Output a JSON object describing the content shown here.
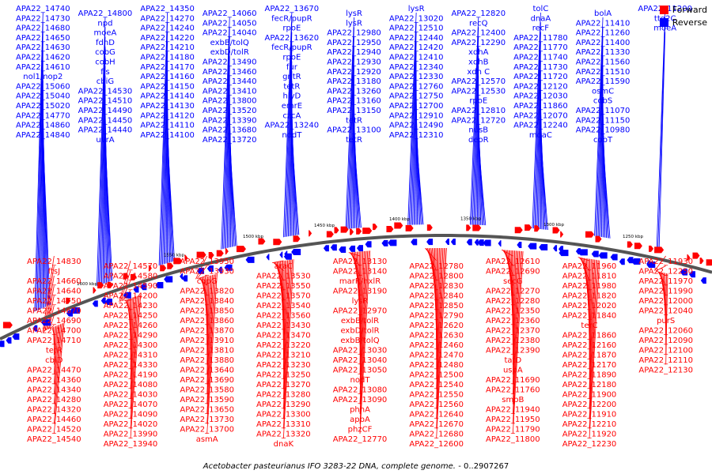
{
  "legend": {
    "forward_label": "Forward",
    "reverse_label": "Reverse",
    "forward_color": "#ff0000",
    "reverse_color": "#0000ff"
  },
  "caption": {
    "organism": "Acetobacter pasteurianus IFO 3283-22 DNA, complete genome.",
    "range": "- 0..2907267"
  },
  "colors": {
    "backbone": "#555555",
    "tick_text": "#000000",
    "forward": "#ff0000",
    "reverse": "#0000ff"
  },
  "ruler_marks": [
    "1250 kbp",
    "1300 kbp",
    "1350 kbp",
    "1400 kbp",
    "1450 kbp",
    "1500 kbp",
    "1550 kbp",
    "1600 kbp"
  ],
  "reverse_labels": [
    "APA22_14740",
    "APA22_14730",
    "APA22_14680",
    "APA22_14650",
    "APA22_14630",
    "APA22_14620",
    "APA22_14610",
    "nol1/nop2",
    "APA22_15060",
    "APA22_15040",
    "APA22_15020",
    "APA22_14770",
    "APA22_14860",
    "APA22_14840",
    "APA22_14800",
    "npd",
    "moeA",
    "fdhD",
    "cobG",
    "cobH",
    "fis",
    "cbiG",
    "APA22_14530",
    "APA22_14510",
    "APA22_14490",
    "APA22_14450",
    "APA22_14440",
    "uvrA",
    "APA22_14350",
    "APA22_14270",
    "APA22_14240",
    "APA22_14220",
    "APA22_14210",
    "APA22_14180",
    "APA22_14170",
    "APA22_14160",
    "APA22_14150",
    "APA22_14140",
    "APA22_14130",
    "APA22_14120",
    "APA22_14110",
    "APA22_14100",
    "APA22_14060",
    "APA22_14050",
    "APA22_14040",
    "exbB/tolQ",
    "exbD/tolR",
    "APA22_13490",
    "APA22_13460",
    "APA22_13440",
    "APA22_13410",
    "APA22_13800",
    "APA22_13520",
    "APA22_13390",
    "APA22_13680",
    "APA22_13720",
    "APA22_13670",
    "fecR/pupR",
    "rpoE",
    "APA22_13620",
    "fecR/pupR",
    "rpoE",
    "fur",
    "gntR",
    "tetR",
    "hlyD",
    "emrE",
    "czcA",
    "APA22_13240",
    "nodT",
    "lysR",
    "lysR",
    "APA22_12980",
    "APA22_12950",
    "APA22_12940",
    "APA22_12930",
    "APA22_12920",
    "APA22_13180",
    "APA22_13260",
    "APA22_13160",
    "APA22_13150",
    "tetR",
    "APA22_13100",
    "tetR",
    "lysR",
    "APA22_13020",
    "APA22_12510",
    "APA22_12440",
    "APA22_12420",
    "APA22_12410",
    "APA22_12340",
    "APA22_12330",
    "APA22_12760",
    "APA22_12750",
    "APA22_12700",
    "APA22_12910",
    "APA22_12490",
    "APA22_12310",
    "APA22_12820",
    "recQ",
    "APA22_12400",
    "APA22_12290",
    "xdhA",
    "xdhB",
    "xdh C",
    "APA22_12570",
    "APA22_12530",
    "rpoE",
    "APA22_12810",
    "APA22_12720",
    "nusB",
    "deoR",
    "tolC",
    "dnaA",
    "recF",
    "APA22_11780",
    "APA22_11770",
    "APA22_11740",
    "APA22_11730",
    "APA22_11720",
    "APA22_12120",
    "APA22_12030",
    "APA22_11860",
    "APA22_12070",
    "APA22_12240",
    "moaC",
    "bolA",
    "APA22_11410",
    "APA22_11260",
    "APA22_11400",
    "APA22_11330",
    "APA22_11560",
    "APA22_11510",
    "APA22_11590",
    "osmC",
    "cobS",
    "APA22_11070",
    "APA22_11150",
    "APA22_10980",
    "cobT",
    "APA22_11200",
    "ttg2C",
    "moeA"
  ],
  "forward_labels": [
    "APA22_14830",
    "ftsJ",
    "APA22_14660",
    "APA22_14640",
    "APA22_14750",
    "APA22_14670",
    "APA22_14690",
    "APA22_14700",
    "APA22_14710",
    "tetR",
    "cbiD",
    "APA22_14470",
    "APA22_14360",
    "APA22_14340",
    "APA22_14280",
    "APA22_14320",
    "APA22_14460",
    "APA22_14520",
    "APA22_14540",
    "APA22_14570",
    "APA22_14580",
    "APA22_14590",
    "APA22_14200",
    "APA22_14230",
    "APA22_14250",
    "APA22_14260",
    "APA22_14290",
    "APA22_14300",
    "APA22_14310",
    "APA22_14330",
    "APA22_14190",
    "APA22_14080",
    "APA22_14030",
    "APA22_14070",
    "APA22_14090",
    "APA22_14020",
    "APA22_13990",
    "APA22_13940",
    "APA22_13950",
    "APA22_13930",
    "copG",
    "APA22_13820",
    "APA22_13840",
    "APA22_13850",
    "APA22_13860",
    "APA22_13870",
    "APA22_13910",
    "APA22_13810",
    "APA22_13880",
    "APA22_13640",
    "APA22_13690",
    "APA22_13580",
    "APA22_13590",
    "APA22_13650",
    "APA22_13730",
    "APA22_13700",
    "asmA",
    "araC",
    "APA22_13530",
    "APA22_13550",
    "APA22_13570",
    "APA22_13540",
    "APA22_13560",
    "APA22_13430",
    "APA22_13470",
    "APA22_13220",
    "APA22_13210",
    "APA22_13230",
    "APA22_13250",
    "APA22_13270",
    "APA22_13280",
    "APA22_13290",
    "APA22_13300",
    "APA22_13310",
    "APA22_13320",
    "dnaK",
    "APA22_13130",
    "APA22_13140",
    "marR/hxlR",
    "APA22_13190",
    "lysR",
    "APA22_12970",
    "exbB/tolR",
    "exbD/tolR",
    "exbB/tolQ",
    "APA22_13030",
    "APA22_13040",
    "APA22_13050",
    "nodT",
    "APA22_13080",
    "APA22_13090",
    "phnA",
    "apbA",
    "phzCF",
    "APA22_12770",
    "APA22_12780",
    "APA22_12800",
    "APA22_12830",
    "APA22_12840",
    "APA22_12850",
    "APA22_12790",
    "APA22_12620",
    "APA22_12630",
    "APA22_12460",
    "APA22_12470",
    "APA22_12480",
    "APA22_12500",
    "APA22_12540",
    "APA22_12550",
    "APA22_12560",
    "APA22_12640",
    "APA22_12670",
    "APA22_12680",
    "APA22_12600",
    "APA22_12610",
    "APA22_12690",
    "secG",
    "APA22_12270",
    "APA22_12280",
    "APA22_12350",
    "APA22_12360",
    "APA22_12370",
    "APA22_12380",
    "APA22_12390",
    "tatD",
    "uspA",
    "APA22_11690",
    "APA22_11760",
    "smpB",
    "APA22_11940",
    "APA22_11950",
    "APA22_11790",
    "APA22_11800",
    "APA22_11960",
    "APA22_11810",
    "APA22_11980",
    "APA22_11820",
    "APA22_12020",
    "APA22_11840",
    "terC",
    "APA22_11860",
    "APA22_12160",
    "APA22_11870",
    "APA22_12170",
    "APA22_11890",
    "APA22_12180",
    "APA22_11900",
    "APA22_12200",
    "APA22_11910",
    "APA22_12210",
    "APA22_11920",
    "APA22_12230",
    "APA22_11930",
    "APA22_12250",
    "APA22_11970",
    "APA22_11990",
    "APA22_12000",
    "APA22_12040",
    "purS",
    "APA22_12060",
    "APA22_12090",
    "APA22_12100",
    "APA22_12110",
    "APA22_12130"
  ]
}
